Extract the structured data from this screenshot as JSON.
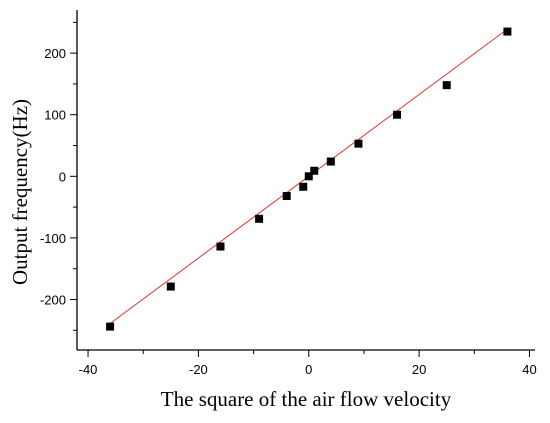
{
  "chart_data": {
    "type": "scatter",
    "xlabel": "The square of the air flow velocity",
    "ylabel": "Output frequency(Hz)",
    "xlim": [
      -42,
      41
    ],
    "ylim": [
      -282,
      270
    ],
    "x_ticks": [
      -40,
      -20,
      0,
      20,
      40
    ],
    "x_tick_labels": [
      "-40",
      "-20",
      "0",
      "20",
      "40"
    ],
    "y_ticks": [
      -200,
      -100,
      0,
      100,
      200
    ],
    "y_tick_labels": [
      "-200",
      "-100",
      "0",
      "100",
      "200"
    ],
    "minor_tick_step_x": 10,
    "minor_tick_step_y": 50,
    "grid": false,
    "series": [
      {
        "marker": "square",
        "color": "#000000",
        "x": [
          -36,
          -25,
          -16,
          -9,
          -4,
          -1,
          0,
          1,
          4,
          9,
          16,
          25,
          36
        ],
        "y": [
          -244,
          -179,
          -114,
          -69,
          -32,
          -17,
          0,
          9,
          24,
          53,
          100,
          148,
          235
        ]
      }
    ],
    "fit_line": {
      "color": "#e8322e",
      "x": [
        -36,
        36
      ],
      "y": [
        -239,
        239
      ]
    }
  }
}
